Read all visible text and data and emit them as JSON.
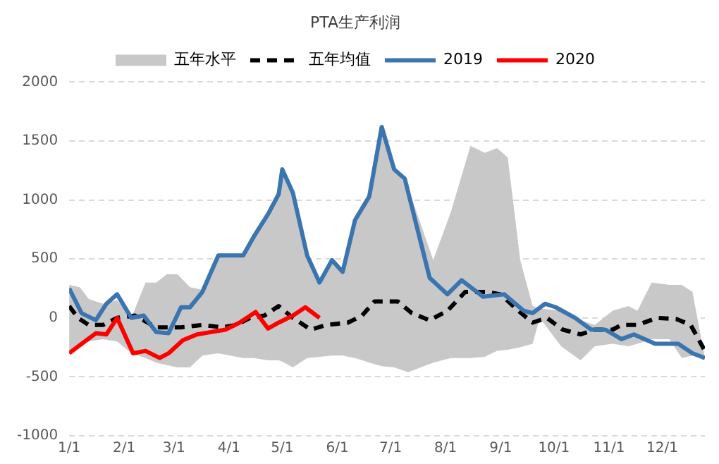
{
  "chart_data": {
    "type": "line",
    "title": "PTA生产利润",
    "legend": "top",
    "grid": "y",
    "xlim": [
      "--01-01",
      "--12-25"
    ],
    "xticks": [
      {
        "value": "--01-01",
        "label": "1/1"
      },
      {
        "value": "--02-01",
        "label": "2/1"
      },
      {
        "value": "--03-01",
        "label": "3/1"
      },
      {
        "value": "--04-01",
        "label": "4/1"
      },
      {
        "value": "--05-01",
        "label": "5/1"
      },
      {
        "value": "--06-01",
        "label": "6/1"
      },
      {
        "value": "--07-01",
        "label": "7/1"
      },
      {
        "value": "--08-01",
        "label": "8/1"
      },
      {
        "value": "--09-01",
        "label": "9/1"
      },
      {
        "value": "--10-01",
        "label": "10/1"
      },
      {
        "value": "--11-01",
        "label": "11/1"
      },
      {
        "value": "--12-01",
        "label": "12/1"
      }
    ],
    "ylim": [
      -1000,
      2000
    ],
    "yticks": [
      -1000,
      -500,
      0,
      500,
      1000,
      1500,
      2000
    ],
    "series": [
      {
        "name": "五年水平",
        "color": "#c8c8c8",
        "x": [
          "--01-01",
          "--01-07",
          "--01-12",
          "--01-20",
          "--01-28",
          "--02-05",
          "--02-13",
          "--02-19",
          "--02-25",
          "--03-03",
          "--03-10",
          "--03-17",
          "--03-26",
          "--04-09",
          "--04-15",
          "--04-23",
          "--04-29",
          "--05-01",
          "--05-07",
          "--05-15",
          "--05-22",
          "--05-29",
          "--06-04",
          "--06-11",
          "--06-19",
          "--06-26",
          "--07-03",
          "--07-11",
          "--07-25",
          "--08-04",
          "--08-15",
          "--08-23",
          "--08-30",
          "--09-05",
          "--09-12",
          "--09-19",
          "--09-23",
          "--10-05",
          "--10-16",
          "--10-24",
          "--11-03",
          "--11-12",
          "--11-17",
          "--11-25",
          "--12-05",
          "--12-12",
          "--12-18",
          "--12-25"
        ],
        "values": [
          null,
          null,
          null,
          null,
          null,
          null,
          null,
          null,
          null,
          null,
          null,
          null,
          null,
          null,
          null,
          null,
          null,
          null,
          null,
          null,
          null,
          null,
          null,
          null,
          null,
          null,
          null,
          null,
          null,
          null,
          null,
          null,
          null,
          null,
          null,
          null,
          null,
          null,
          null,
          null,
          null,
          null,
          null,
          null,
          null,
          null,
          null,
          null
        ],
        "upper": [
          280,
          260,
          160,
          120,
          150,
          0,
          300,
          300,
          370,
          370,
          260,
          240,
          530,
          530,
          690,
          880,
          1050,
          1260,
          1060,
          530,
          300,
          490,
          390,
          830,
          1030,
          1620,
          1260,
          1100,
          490,
          900,
          1460,
          1400,
          1440,
          1360,
          490,
          100,
          80,
          60,
          -20,
          -60,
          60,
          100,
          60,
          300,
          280,
          280,
          220,
          -340
        ],
        "lower": [
          -280,
          -240,
          -200,
          -180,
          -200,
          -300,
          -340,
          -380,
          -400,
          -420,
          -420,
          -320,
          -300,
          -340,
          -340,
          -360,
          -360,
          -370,
          -420,
          -340,
          -330,
          -320,
          -320,
          -340,
          -380,
          -410,
          -420,
          -460,
          -380,
          -340,
          -340,
          -330,
          -280,
          -270,
          -250,
          -220,
          0,
          -240,
          -360,
          -240,
          -220,
          -240,
          -220,
          -180,
          -180,
          -340,
          -320,
          -340
        ]
      },
      {
        "name": "五年均值",
        "type": "line",
        "color": "#000000",
        "line_style": "dashed",
        "x": [
          "--01-01",
          "--01-06",
          "--01-12",
          "--01-20",
          "--01-28",
          "--02-07",
          "--02-19",
          "--03-05",
          "--03-17",
          "--03-28",
          "--04-05",
          "--04-13",
          "--04-21",
          "--04-29",
          "--05-07",
          "--05-17",
          "--05-26",
          "--06-07",
          "--06-15",
          "--06-22",
          "--07-05",
          "--07-13",
          "--07-23",
          "--08-02",
          "--08-12",
          "--08-24",
          "--09-01",
          "--09-11",
          "--09-19",
          "--09-27",
          "--10-06",
          "--10-16",
          "--10-24",
          "--11-03",
          "--11-08",
          "--11-17",
          "--11-28",
          "--12-09",
          "--12-17",
          "--12-25"
        ],
        "values": [
          100,
          0,
          -60,
          -60,
          0,
          20,
          -80,
          -80,
          -60,
          -80,
          -60,
          0,
          20,
          100,
          0,
          -100,
          -60,
          -40,
          20,
          140,
          140,
          40,
          -20,
          60,
          220,
          220,
          200,
          60,
          -40,
          0,
          -100,
          -140,
          -100,
          -100,
          -60,
          -60,
          0,
          -10,
          -60,
          -280
        ]
      },
      {
        "name": "2019",
        "type": "line",
        "color": "#3a75b0",
        "x": [
          "--01-01",
          "--01-08",
          "--01-16",
          "--01-22",
          "--01-28",
          "--02-05",
          "--02-12",
          "--02-19",
          "--02-26",
          "--03-05",
          "--03-10",
          "--03-17",
          "--03-26",
          "--04-09",
          "--04-15",
          "--04-23",
          "--04-29",
          "--05-01",
          "--05-07",
          "--05-15",
          "--05-22",
          "--05-29",
          "--06-04",
          "--06-11",
          "--06-19",
          "--06-26",
          "--07-03",
          "--07-09",
          "--07-23",
          "--08-02",
          "--08-10",
          "--08-22",
          "--09-03",
          "--09-14",
          "--09-19",
          "--09-26",
          "--10-02",
          "--10-13",
          "--10-22",
          "--10-30",
          "--11-08",
          "--11-15",
          "--11-27",
          "--12-10",
          "--12-18",
          "--12-25"
        ],
        "values": [
          250,
          40,
          -20,
          120,
          200,
          0,
          20,
          -120,
          -130,
          90,
          90,
          220,
          530,
          530,
          690,
          880,
          1050,
          1260,
          1060,
          530,
          300,
          490,
          390,
          830,
          1030,
          1620,
          1260,
          1180,
          340,
          200,
          320,
          180,
          200,
          60,
          40,
          120,
          90,
          0,
          -100,
          -100,
          -180,
          -140,
          -220,
          -220,
          -300,
          -340
        ]
      },
      {
        "name": "2020",
        "type": "line",
        "color": "#ff0000",
        "x": [
          "--01-01",
          "--01-08",
          "--01-16",
          "--01-22",
          "--01-28",
          "--02-06",
          "--02-13",
          "--02-21",
          "--02-26",
          "--03-06",
          "--03-14",
          "--03-22",
          "--03-30",
          "--04-07",
          "--04-16",
          "--04-23",
          "--04-29",
          "--05-07",
          "--05-14",
          "--05-22"
        ],
        "values": [
          -300,
          -220,
          -130,
          -140,
          0,
          -300,
          -280,
          -340,
          -300,
          -190,
          -140,
          -120,
          -100,
          -40,
          50,
          -90,
          -40,
          20,
          90,
          0
        ]
      }
    ]
  }
}
